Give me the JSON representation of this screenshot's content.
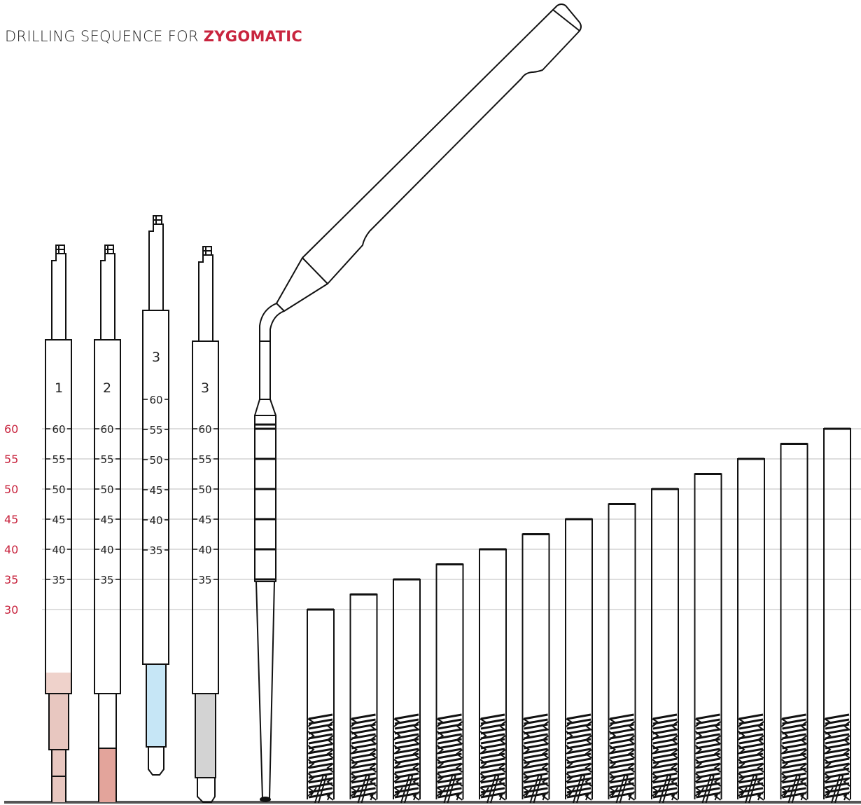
{
  "title": {
    "prefix": "DRILLING SEQUENCE FOR ",
    "highlight": "ZYGOMATIC"
  },
  "colors": {
    "accent": "#c8243e",
    "grid": "#bdbdbd",
    "outline": "#111111",
    "baseline": "#555555"
  },
  "scale_labels": [
    "60",
    "55",
    "50",
    "45",
    "40",
    "35",
    "30"
  ],
  "drills": [
    {
      "label": "1",
      "marks": [
        "60",
        "55",
        "50",
        "45",
        "40",
        "35"
      ],
      "tip_color": "#efd2cb",
      "tip_color_2": "#e8c7c0"
    },
    {
      "label": "2",
      "marks": [
        "60",
        "55",
        "50",
        "45",
        "40",
        "35"
      ],
      "tip_color": "#e3a49b"
    },
    {
      "label": "3",
      "marks": [
        "60",
        "55",
        "50",
        "45",
        "40",
        "35"
      ],
      "tip_color": "#c6e6f6"
    },
    {
      "label": "3",
      "marks": [
        "60",
        "55",
        "50",
        "45",
        "40",
        "35"
      ],
      "tip_color": "#d3d3d3"
    }
  ],
  "implant_lengths": [
    30,
    32.5,
    35,
    37.5,
    40,
    42.5,
    45,
    47.5,
    50,
    52.5,
    55,
    57.5,
    60
  ]
}
